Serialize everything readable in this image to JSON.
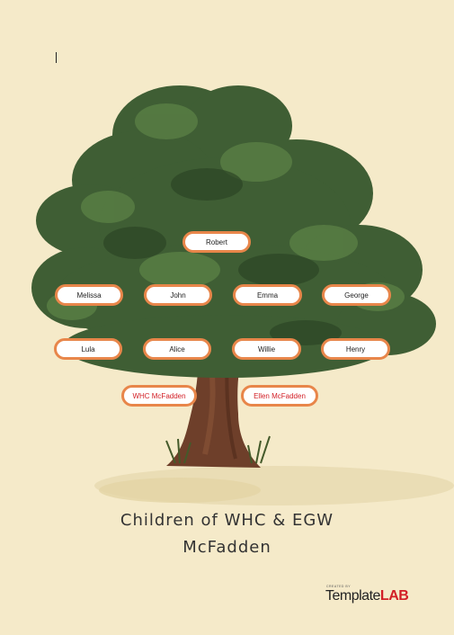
{
  "family": {
    "root": "Robert",
    "row1": [
      "Melissa",
      "John",
      "Emma",
      "George"
    ],
    "row2": [
      "Lula",
      "Alice",
      "Willie",
      "Henry"
    ],
    "row3": [
      "WHC McFadden",
      "Ellen McFadden"
    ]
  },
  "title": {
    "line1": "Children of WHC & EGW",
    "line2": "McFadden"
  },
  "brand": {
    "created_by": "CREATED BY",
    "name_part1": "Template",
    "name_part2": "LAB"
  },
  "colors": {
    "background": "#f5eac9",
    "pill_border": "#e8864a",
    "highlight_text": "#d21f26",
    "leaves": "#3f5e34",
    "trunk": "#6e3f2a"
  }
}
